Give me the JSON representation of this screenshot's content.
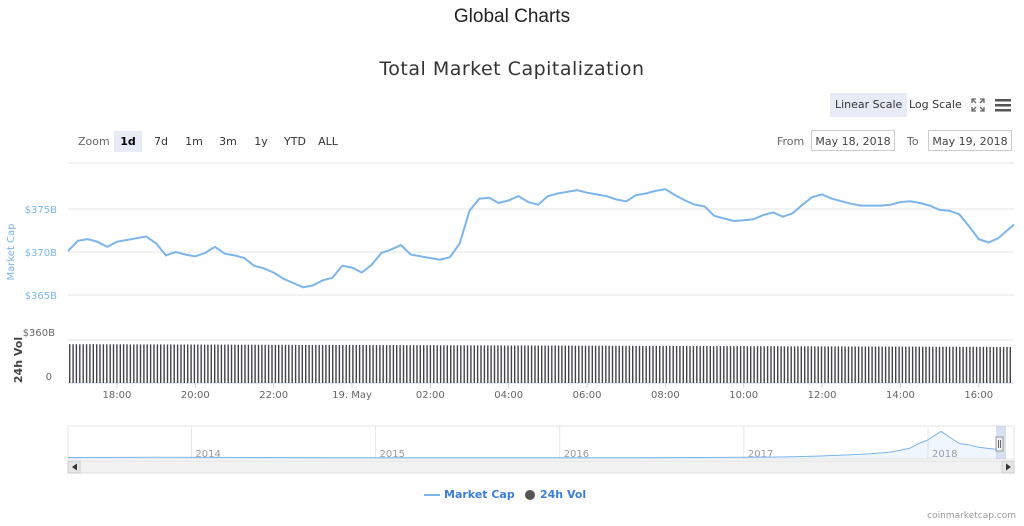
{
  "page": {
    "heading": "Global Charts"
  },
  "toolbar": {
    "scale_buttons": [
      {
        "label": "Linear Scale",
        "active": true
      },
      {
        "label": "Log Scale",
        "active": false
      }
    ],
    "fullscreen_icon": "expand-icon",
    "menu_icon": "hamburger-menu-icon"
  },
  "range_selector": {
    "zoom_label": "Zoom",
    "buttons": [
      {
        "label": "1d",
        "active": true
      },
      {
        "label": "7d",
        "active": false
      },
      {
        "label": "1m",
        "active": false
      },
      {
        "label": "3m",
        "active": false
      },
      {
        "label": "1y",
        "active": false
      },
      {
        "label": "YTD",
        "active": false
      },
      {
        "label": "ALL",
        "active": false
      }
    ],
    "from_label": "From",
    "from_value": "May 18, 2018",
    "to_label": "To",
    "to_value": "May 19, 2018"
  },
  "colors": {
    "market_cap": "#7cb5ec",
    "volume": "#434348",
    "accent": "#3b7dd8"
  },
  "chart_data": {
    "type": "line",
    "title": "Total Market Capitalization",
    "main": {
      "ylabel": "Market Cap",
      "ylim_label_values": [
        365,
        375
      ],
      "yticks": [
        {
          "v": 365,
          "label": "$365B"
        },
        {
          "v": 370,
          "label": "$370B"
        },
        {
          "v": 375,
          "label": "$375B"
        }
      ],
      "x_start_hours": 16.75,
      "x_end_hours": 40.9,
      "x_ticks": [
        {
          "h": 18,
          "label": "18:00"
        },
        {
          "h": 20,
          "label": "20:00"
        },
        {
          "h": 22,
          "label": "22:00"
        },
        {
          "h": 24,
          "label": "19. May"
        },
        {
          "h": 26,
          "label": "02:00"
        },
        {
          "h": 28,
          "label": "04:00"
        },
        {
          "h": 30,
          "label": "06:00"
        },
        {
          "h": 32,
          "label": "08:00"
        },
        {
          "h": 34,
          "label": "10:00"
        },
        {
          "h": 36,
          "label": "12:00"
        },
        {
          "h": 38,
          "label": "14:00"
        },
        {
          "h": 40,
          "label": "16:00"
        }
      ],
      "series": [
        {
          "name": "Market Cap",
          "x_hours": [
            16.75,
            17.0,
            17.25,
            17.5,
            17.75,
            18.0,
            18.25,
            18.5,
            18.75,
            19.0,
            19.25,
            19.5,
            19.75,
            20.0,
            20.25,
            20.5,
            20.75,
            21.0,
            21.25,
            21.5,
            21.75,
            22.0,
            22.25,
            22.5,
            22.75,
            23.0,
            23.25,
            23.5,
            23.75,
            24.0,
            24.25,
            24.5,
            24.75,
            25.0,
            25.25,
            25.5,
            25.75,
            26.0,
            26.25,
            26.5,
            26.75,
            27.0,
            27.25,
            27.5,
            27.75,
            28.0,
            28.25,
            28.5,
            28.75,
            29.0,
            29.25,
            29.5,
            29.75,
            30.0,
            30.25,
            30.5,
            30.75,
            31.0,
            31.25,
            31.5,
            31.75,
            32.0,
            32.25,
            32.5,
            32.75,
            33.0,
            33.25,
            33.5,
            33.75,
            34.0,
            34.25,
            34.5,
            34.75,
            35.0,
            35.25,
            35.5,
            35.75,
            36.0,
            36.25,
            36.5,
            36.75,
            37.0,
            37.25,
            37.5,
            37.75,
            38.0,
            38.25,
            38.5,
            38.75,
            39.0,
            39.25,
            39.5,
            39.75,
            40.0,
            40.25,
            40.5,
            40.75,
            40.9
          ],
          "values": [
            370.1,
            371.3,
            371.5,
            371.2,
            370.6,
            371.2,
            371.4,
            371.6,
            371.8,
            371.0,
            369.6,
            370.0,
            369.7,
            369.5,
            369.9,
            370.6,
            369.8,
            369.6,
            369.3,
            368.4,
            368.1,
            367.6,
            366.9,
            366.4,
            365.9,
            366.1,
            366.7,
            367.0,
            368.4,
            368.2,
            367.6,
            368.5,
            369.9,
            370.3,
            370.8,
            369.7,
            369.5,
            369.3,
            369.1,
            369.4,
            371.0,
            374.8,
            376.2,
            376.3,
            375.7,
            376.0,
            376.5,
            375.8,
            375.5,
            376.5,
            376.8,
            377.0,
            377.2,
            376.9,
            376.7,
            376.5,
            376.1,
            375.9,
            376.6,
            376.8,
            377.1,
            377.3,
            376.6,
            376.0,
            375.5,
            375.3,
            374.2,
            373.9,
            373.6,
            373.7,
            373.8,
            374.3,
            374.6,
            374.1,
            374.5,
            375.5,
            376.4,
            376.7,
            376.2,
            375.9,
            375.6,
            375.4,
            375.4,
            375.4,
            375.5,
            375.8,
            375.9,
            375.7,
            375.4,
            374.9,
            374.8,
            374.4,
            373.0,
            371.5,
            371.1,
            371.6,
            372.6,
            373.2
          ]
        }
      ]
    },
    "volume": {
      "ylabel": "24h Vol",
      "yticks": [
        {
          "v": 0,
          "label": "0"
        },
        {
          "v": 360,
          "label": "$360B"
        }
      ],
      "ylim": [
        0,
        360
      ],
      "series": [
        {
          "name": "24h Vol",
          "start_value": 325,
          "end_value": 302,
          "unit": "B"
        }
      ]
    },
    "navigator": {
      "year_labels": [
        "2014",
        "2015",
        "2016",
        "2017",
        "2018"
      ],
      "x_years": [
        2013.33,
        2013.8,
        2014.3,
        2014.8,
        2015.3,
        2015.8,
        2016.3,
        2016.8,
        2017.2,
        2017.4,
        2017.6,
        2017.7,
        2017.8,
        2017.9,
        2017.95,
        2018.0,
        2018.03,
        2018.07,
        2018.12,
        2018.17,
        2018.22,
        2018.27,
        2018.32,
        2018.38
      ],
      "values": [
        2,
        3,
        2,
        1,
        1,
        1,
        1,
        2,
        4,
        8,
        14,
        18,
        25,
        40,
        60,
        75,
        90,
        110,
        85,
        60,
        55,
        45,
        40,
        35
      ],
      "ylim": [
        0,
        120
      ]
    },
    "legend": [
      "Market Cap",
      "24h Vol"
    ],
    "credits": "coinmarketcap.com",
    "grid": true
  }
}
